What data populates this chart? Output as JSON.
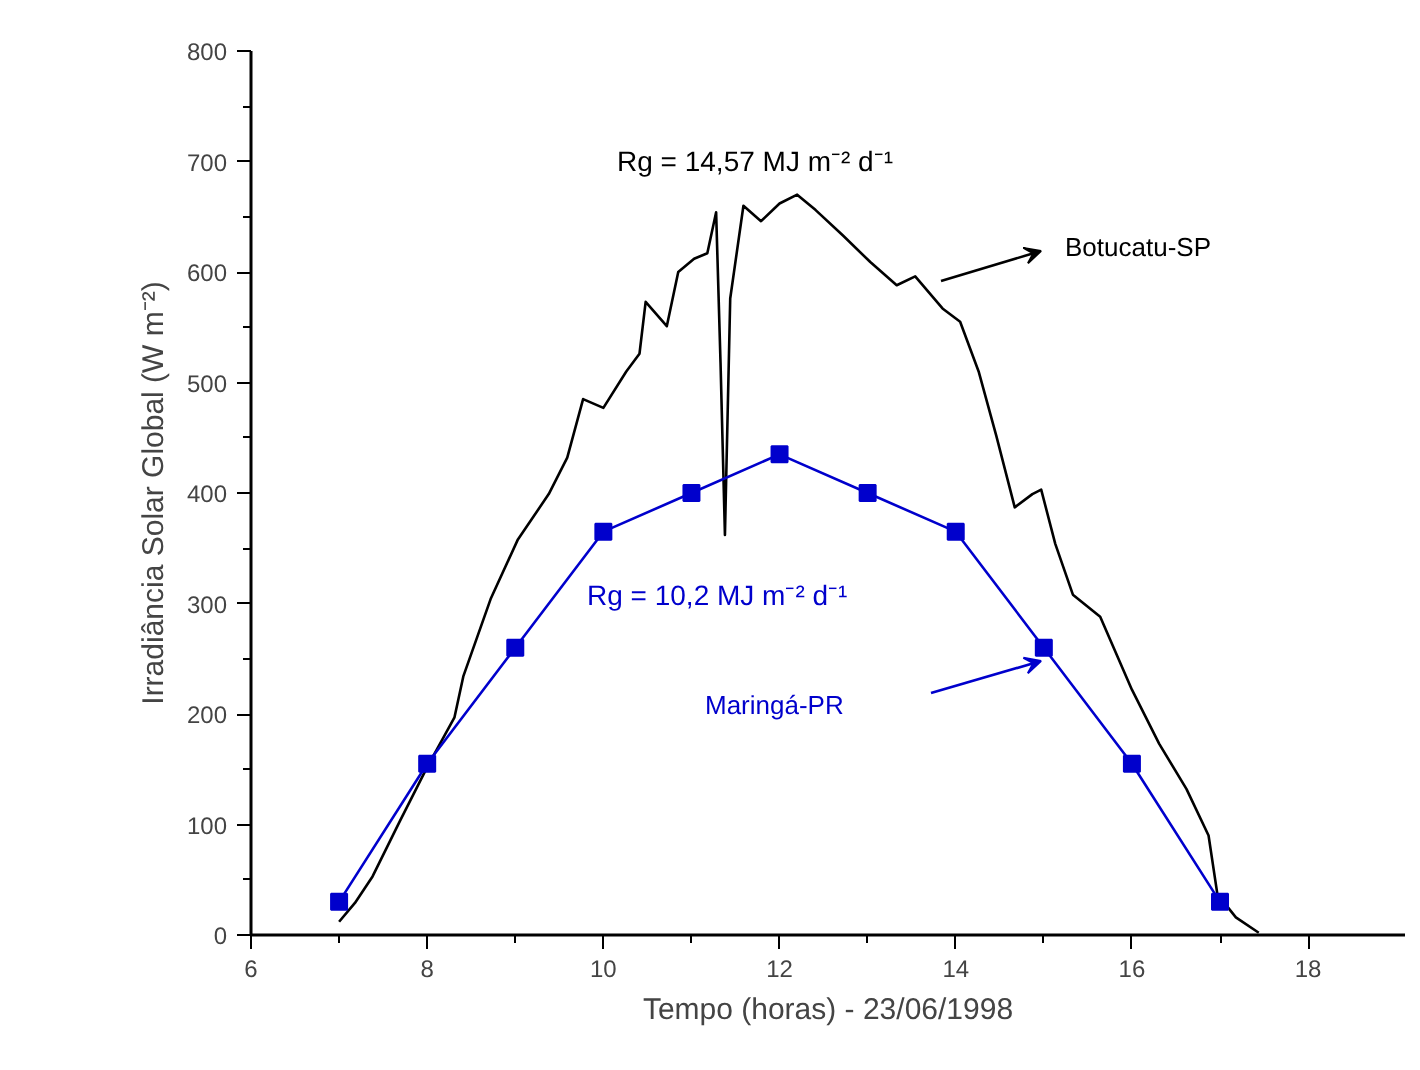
{
  "chart_data": {
    "type": "line",
    "xlabel": "Tempo (horas) - 23/06/1998",
    "ylabel": "Irradiância Solar Global (W m⁻²)",
    "xlim": [
      6,
      19.1
    ],
    "xticks": [
      6,
      8,
      10,
      12,
      14,
      16,
      18
    ],
    "ylim": [
      0,
      800
    ],
    "yticks": [
      0,
      100,
      200,
      300,
      400,
      500,
      600,
      700,
      800
    ],
    "grid": false,
    "line_style": "solid",
    "annotations": [
      "Rg = 14,57 MJ m⁻² d⁻¹",
      "Rg = 10,2 MJ m⁻² d⁻¹"
    ],
    "series": [
      {
        "name": "Botucatu-SP",
        "color": "#000000",
        "marker": "none",
        "x": [
          7.0,
          7.18,
          7.38,
          7.69,
          8.0,
          8.31,
          8.41,
          8.72,
          9.03,
          9.38,
          9.59,
          9.77,
          10.0,
          10.26,
          10.41,
          10.48,
          10.72,
          10.85,
          11.03,
          11.18,
          11.28,
          11.33,
          11.38,
          11.44,
          11.59,
          11.79,
          12.0,
          12.2,
          12.41,
          12.72,
          13.03,
          13.33,
          13.54,
          13.85,
          14.05,
          14.26,
          14.46,
          14.67,
          14.87,
          14.97,
          15.13,
          15.33,
          15.64,
          16.0,
          16.31,
          16.62,
          16.87,
          16.97,
          17.18,
          17.44
        ],
        "values": [
          12,
          29,
          53,
          103,
          152,
          197,
          234,
          304,
          358,
          399,
          432,
          485,
          477,
          510,
          526,
          573,
          551,
          600,
          612,
          617,
          654,
          518,
          362,
          576,
          660,
          646,
          662,
          670,
          656,
          633,
          609,
          588,
          596,
          567,
          555,
          510,
          452,
          387,
          399,
          403,
          354,
          308,
          288,
          222,
          173,
          132,
          90,
          37,
          16,
          2
        ]
      },
      {
        "name": "Maringá-PR",
        "color": "#0000cc",
        "marker": "square",
        "x": [
          7,
          8,
          9,
          10,
          11,
          12,
          13,
          14,
          15,
          16,
          17
        ],
        "values": [
          30,
          155,
          260,
          365,
          400,
          435,
          400,
          365,
          260,
          155,
          30
        ]
      }
    ]
  }
}
